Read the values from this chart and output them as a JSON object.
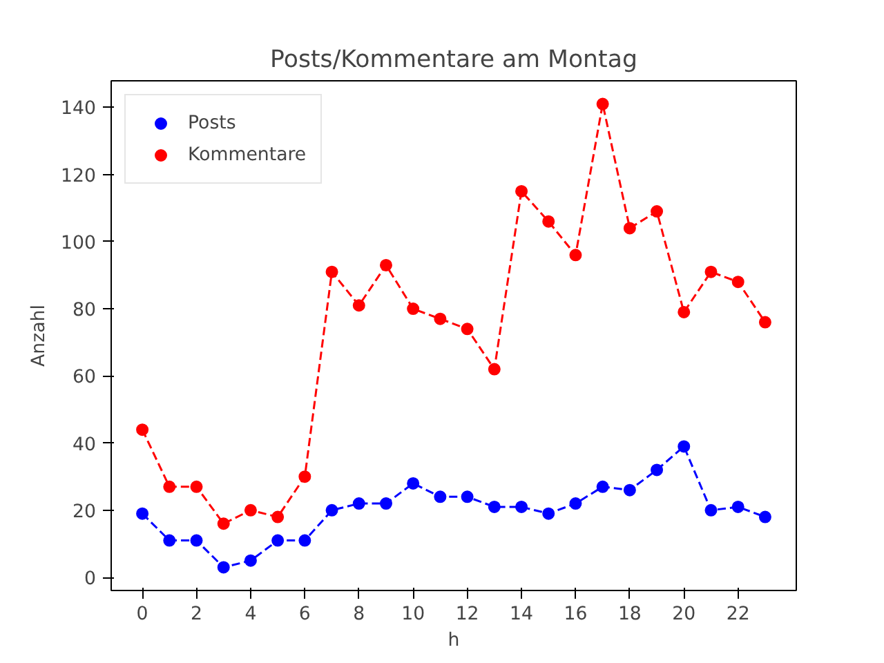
{
  "chart_data": {
    "type": "line",
    "title": "Posts/Kommentare am Montag",
    "xlabel": "h",
    "ylabel": "Anzahl",
    "x": [
      0,
      1,
      2,
      3,
      4,
      5,
      6,
      7,
      8,
      9,
      10,
      11,
      12,
      13,
      14,
      15,
      16,
      17,
      18,
      19,
      20,
      21,
      22,
      23
    ],
    "series": [
      {
        "name": "Posts",
        "color": "#0000ff",
        "values": [
          19,
          11,
          11,
          3,
          5,
          11,
          11,
          20,
          22,
          22,
          28,
          24,
          24,
          21,
          21,
          19,
          22,
          27,
          26,
          32,
          39,
          20,
          21,
          18
        ]
      },
      {
        "name": "Kommentare",
        "color": "#ff0000",
        "values": [
          44,
          27,
          27,
          16,
          20,
          18,
          30,
          91,
          81,
          93,
          80,
          77,
          74,
          62,
          115,
          106,
          96,
          141,
          104,
          109,
          79,
          91,
          88,
          76
        ]
      }
    ],
    "xlim": [
      -1.15,
      24.15
    ],
    "ylim": [
      -3.9,
      147.9
    ],
    "xticks": [
      0,
      2,
      4,
      6,
      8,
      10,
      12,
      14,
      16,
      18,
      20,
      22
    ],
    "yticks": [
      0,
      20,
      40,
      60,
      80,
      100,
      120,
      140
    ],
    "grid": false,
    "legend": "top left",
    "marker": "circle",
    "line_style": "dashed"
  }
}
